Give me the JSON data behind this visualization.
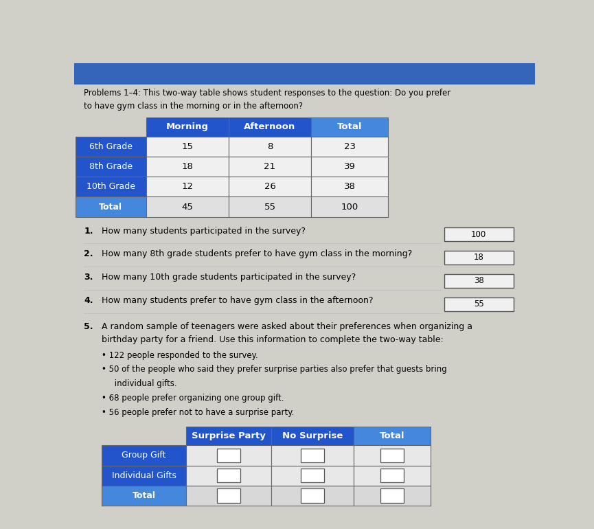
{
  "bg_color": "#d0cfc8",
  "title_line1": "Problems 1–4: This two-way table shows student responses to the question: Do you prefer",
  "title_line2": "to have gym class in the morning or in the afternoon?",
  "table1": {
    "col_headers": [
      "Morning",
      "Afternoon",
      "Total"
    ],
    "row_headers": [
      "6th Grade",
      "8th Grade",
      "10th Grade",
      "Total"
    ],
    "data": [
      [
        15,
        8,
        23
      ],
      [
        18,
        21,
        39
      ],
      [
        12,
        26,
        38
      ],
      [
        45,
        55,
        100
      ]
    ],
    "header_bg": "#2255cc",
    "row_bg_dark": "#2255cc",
    "total_row_bg": "#4488dd"
  },
  "questions": [
    {
      "num": "1.",
      "text": "How many students participated in the survey?",
      "answer": "100"
    },
    {
      "num": "2.",
      "text": "How many 8th grade students prefer to have gym class in the morning?",
      "answer": "18"
    },
    {
      "num": "3.",
      "text": "How many 10th grade students participated in the survey?",
      "answer": "38"
    },
    {
      "num": "4.",
      "text": "How many students prefer to have gym class in the afternoon?",
      "answer": "55"
    }
  ],
  "q5_line1": "A random sample of teenagers were asked about their preferences when organizing a",
  "q5_line2": "birthday party for a friend. Use this information to complete the two-way table:",
  "bullets": [
    "122 people responded to the survey.",
    "50 of the people who said they prefer surprise parties also prefer that guests bring",
    "     individual gifts.",
    "68 people prefer organizing one group gift.",
    "56 people prefer not to have a surprise party."
  ],
  "table2": {
    "col_headers": [
      "Surprise Party",
      "No Surprise",
      "Total"
    ],
    "row_headers": [
      "Group Gift",
      "Individual Gifts",
      "Total"
    ],
    "header_bg": "#2255cc",
    "row_bg_dark": "#2255cc",
    "total_row_bg": "#4488dd"
  }
}
